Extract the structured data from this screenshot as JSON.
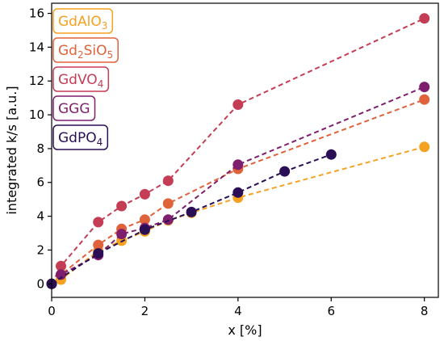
{
  "chart_data": {
    "type": "line",
    "xlabel": "x [%]",
    "ylabel": "integrated k/s [a.u.]",
    "xlim": [
      0,
      8.3
    ],
    "ylim": [
      -0.8,
      16.6
    ],
    "xticks": [
      0,
      2,
      4,
      6,
      8
    ],
    "yticks": [
      0,
      2,
      4,
      6,
      8,
      10,
      12,
      14,
      16
    ],
    "grid": false,
    "legend_position": "top-left",
    "line_style": "dashed",
    "marker": "circle",
    "series": [
      {
        "name": "GdAlO3",
        "legend": {
          "base": "GdAlO",
          "sub": "3",
          "base2": "",
          "sub2": ""
        },
        "color": "#f5a121",
        "x": [
          0,
          0.2,
          1,
          1.5,
          2,
          2.5,
          3,
          4,
          8
        ],
        "y": [
          0,
          0.25,
          1.95,
          2.55,
          3.1,
          3.75,
          4.2,
          5.1,
          8.1
        ]
      },
      {
        "name": "Gd2SiO5",
        "legend": {
          "base": "Gd",
          "sub": "2",
          "base2": "SiO",
          "sub2": "5"
        },
        "color": "#e0623a",
        "x": [
          0,
          0.2,
          1,
          1.5,
          2,
          2.5,
          4,
          8
        ],
        "y": [
          0,
          0.55,
          2.3,
          3.25,
          3.8,
          4.75,
          6.8,
          10.9
        ]
      },
      {
        "name": "GdVO4",
        "legend": {
          "base": "GdVO",
          "sub": "4",
          "base2": "",
          "sub2": ""
        },
        "color": "#c53c55",
        "x": [
          0,
          0.2,
          1,
          1.5,
          2,
          2.5,
          4,
          8
        ],
        "y": [
          0,
          1.05,
          3.65,
          4.6,
          5.3,
          6.1,
          10.6,
          15.7
        ]
      },
      {
        "name": "GGG",
        "legend": {
          "base": "GGG",
          "sub": "",
          "base2": "",
          "sub2": ""
        },
        "color": "#7e1f6e",
        "x": [
          0,
          0.2,
          1,
          1.5,
          2,
          2.5,
          4,
          8
        ],
        "y": [
          0,
          0.55,
          1.7,
          2.95,
          3.3,
          3.8,
          7.05,
          11.65
        ]
      },
      {
        "name": "GdPO4",
        "legend": {
          "base": "GdPO",
          "sub": "4",
          "base2": "",
          "sub2": ""
        },
        "color": "#2a0f56",
        "x": [
          0,
          1,
          2,
          3,
          4,
          5,
          6
        ],
        "y": [
          0,
          1.8,
          3.2,
          4.25,
          5.4,
          6.65,
          7.65
        ]
      }
    ]
  }
}
